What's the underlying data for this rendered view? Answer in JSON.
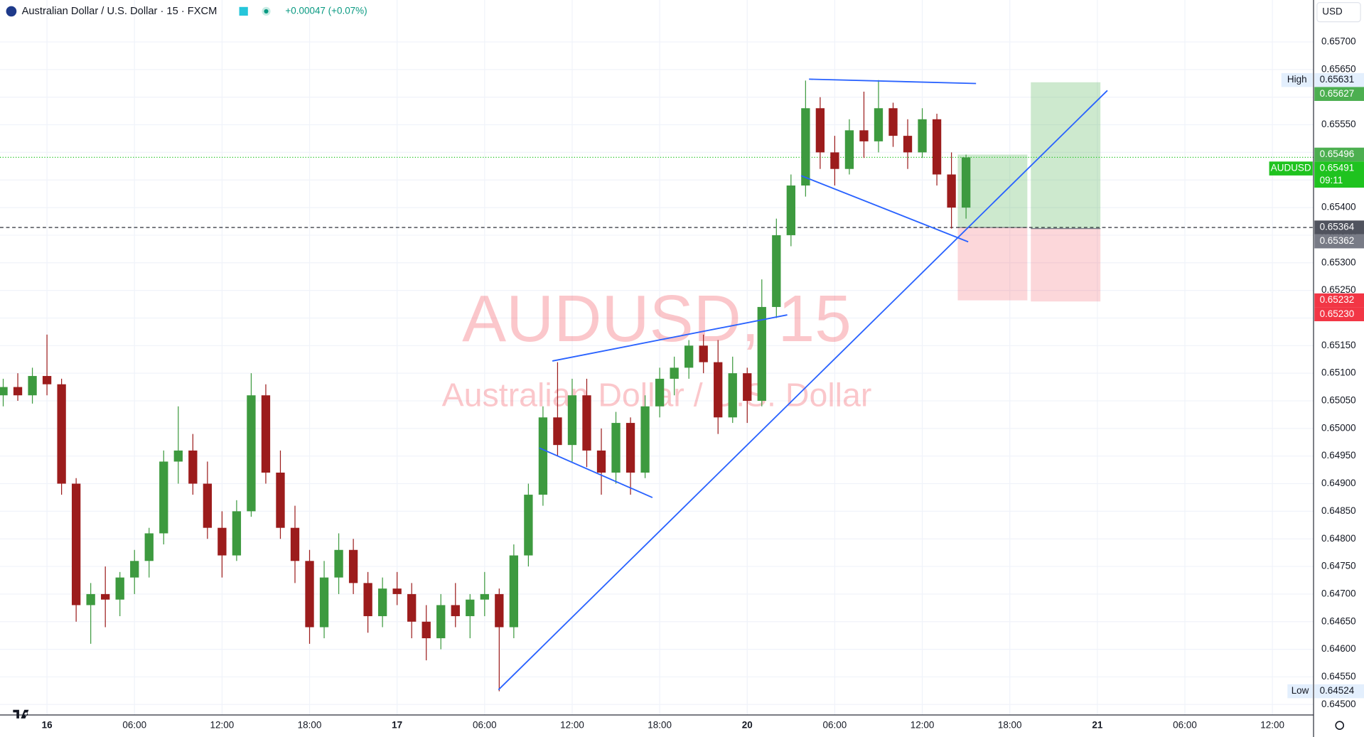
{
  "chart_data": {
    "type": "candlestick",
    "title": "Australian Dollar / U.S. Dollar · 15 · FXCM",
    "change": "+0.00047 (+0.07%)",
    "watermark": "AUDUSD, 15",
    "watermark_subtitle": "Australian Dollar / U.S. Dollar",
    "currency": "USD",
    "up_color": "#3d9a3f",
    "down_color": "#9c1c1c",
    "grid": true,
    "x": [
      -3,
      -2,
      -1,
      0,
      1,
      2,
      3,
      4,
      5,
      6,
      7,
      8,
      9,
      10,
      11,
      12,
      13,
      14,
      15,
      16,
      17,
      18,
      19,
      20,
      21,
      22,
      23,
      24,
      25,
      26,
      27,
      28,
      29,
      30,
      31,
      32,
      33,
      34,
      35,
      36,
      37,
      38,
      39,
      40,
      41,
      42,
      43,
      44,
      45,
      46,
      47,
      48,
      49,
      50,
      51,
      52,
      53,
      54,
      55,
      56,
      57,
      58,
      59,
      60,
      61,
      62,
      63
    ],
    "open": [
      0.6506,
      0.65075,
      0.6506,
      0.65095,
      0.6508,
      0.649,
      0.6468,
      0.647,
      0.6469,
      0.6473,
      0.6476,
      0.6481,
      0.6494,
      0.6496,
      0.649,
      0.6482,
      0.6477,
      0.6485,
      0.6506,
      0.6492,
      0.6482,
      0.6476,
      0.6464,
      0.6473,
      0.6478,
      0.6472,
      0.6466,
      0.6471,
      0.647,
      0.6465,
      0.6462,
      0.6468,
      0.6466,
      0.6469,
      0.647,
      0.6464,
      0.6477,
      0.6488,
      0.6502,
      0.6497,
      0.6506,
      0.6496,
      0.6492,
      0.6501,
      0.6492,
      0.6504,
      0.6509,
      0.6511,
      0.6515,
      0.6512,
      0.6502,
      0.651,
      0.6505,
      0.6522,
      0.6535,
      0.6544,
      0.6558,
      0.655,
      0.6547,
      0.6554,
      0.6552,
      0.6558,
      0.6553,
      0.655,
      0.6556,
      0.6546,
      0.654
    ],
    "high": [
      0.6509,
      0.651,
      0.6511,
      0.6517,
      0.6509,
      0.6491,
      0.6472,
      0.6475,
      0.6474,
      0.6478,
      0.6482,
      0.6496,
      0.6504,
      0.6499,
      0.6494,
      0.6485,
      0.6487,
      0.651,
      0.6508,
      0.6496,
      0.6486,
      0.6478,
      0.6476,
      0.6481,
      0.648,
      0.6474,
      0.6473,
      0.6474,
      0.6472,
      0.6468,
      0.647,
      0.6472,
      0.647,
      0.6474,
      0.6471,
      0.6479,
      0.649,
      0.6504,
      0.6512,
      0.6509,
      0.6509,
      0.65,
      0.6503,
      0.6502,
      0.6506,
      0.6511,
      0.6513,
      0.6516,
      0.6517,
      0.6516,
      0.6513,
      0.6511,
      0.6527,
      0.6538,
      0.6546,
      0.6563,
      0.656,
      0.6553,
      0.6556,
      0.6561,
      0.65631,
      0.6559,
      0.6556,
      0.6558,
      0.6557,
      0.655,
      0.65496
    ],
    "low": [
      0.6504,
      0.6505,
      0.65045,
      0.6506,
      0.6488,
      0.6465,
      0.6461,
      0.6464,
      0.6466,
      0.647,
      0.6473,
      0.6479,
      0.649,
      0.6488,
      0.648,
      0.6473,
      0.6476,
      0.6484,
      0.649,
      0.648,
      0.6472,
      0.6461,
      0.6462,
      0.647,
      0.647,
      0.6463,
      0.6464,
      0.6468,
      0.6462,
      0.6458,
      0.646,
      0.6464,
      0.6462,
      0.6466,
      0.64524,
      0.6462,
      0.6475,
      0.6486,
      0.6495,
      0.6494,
      0.6493,
      0.6488,
      0.649,
      0.6488,
      0.6491,
      0.6502,
      0.6506,
      0.6509,
      0.651,
      0.6499,
      0.6501,
      0.6501,
      0.6504,
      0.652,
      0.6533,
      0.6542,
      0.6547,
      0.6544,
      0.6546,
      0.6549,
      0.655,
      0.6551,
      0.6547,
      0.6549,
      0.6544,
      0.65362,
      0.6538
    ],
    "close": [
      0.65075,
      0.6506,
      0.65095,
      0.6508,
      0.649,
      0.6468,
      0.647,
      0.6469,
      0.6473,
      0.6476,
      0.6481,
      0.6494,
      0.6496,
      0.649,
      0.6482,
      0.6477,
      0.6485,
      0.6506,
      0.6492,
      0.6482,
      0.6476,
      0.6464,
      0.6473,
      0.6478,
      0.6472,
      0.6466,
      0.6471,
      0.647,
      0.6465,
      0.6462,
      0.6468,
      0.6466,
      0.6469,
      0.647,
      0.6464,
      0.6477,
      0.6488,
      0.6502,
      0.6497,
      0.6506,
      0.6496,
      0.6492,
      0.6501,
      0.6492,
      0.6504,
      0.6509,
      0.6511,
      0.6515,
      0.6512,
      0.6502,
      0.651,
      0.6505,
      0.6522,
      0.6535,
      0.6544,
      0.6558,
      0.655,
      0.6547,
      0.6554,
      0.6552,
      0.6558,
      0.6553,
      0.655,
      0.6556,
      0.6546,
      0.654,
      0.65491
    ],
    "xlim": [
      -3.22,
      86.82
    ],
    "xticks": [
      {
        "value": 0,
        "label": "16"
      },
      {
        "value": 6,
        "label": "06:00"
      },
      {
        "value": 12,
        "label": "12:00"
      },
      {
        "value": 18,
        "label": "18:00"
      },
      {
        "value": 24,
        "label": "17"
      },
      {
        "value": 30,
        "label": "06:00"
      },
      {
        "value": 36,
        "label": "12:00"
      },
      {
        "value": 42,
        "label": "18:00"
      },
      {
        "value": 48,
        "label": "20"
      },
      {
        "value": 54,
        "label": "06:00"
      },
      {
        "value": 60,
        "label": "12:00"
      },
      {
        "value": 66,
        "label": "18:00"
      },
      {
        "value": 72,
        "label": "21"
      },
      {
        "value": 78,
        "label": "06:00"
      },
      {
        "value": 84,
        "label": "12:00"
      }
    ],
    "ylim": [
      0.64481,
      0.65776
    ],
    "yticks": [
      {
        "value": 0.657,
        "label": "0.65700"
      },
      {
        "value": 0.6565,
        "label": "0.65650"
      },
      {
        "value": 0.656,
        "label": "0.65600"
      },
      {
        "value": 0.6555,
        "label": "0.65550"
      },
      {
        "value": 0.655,
        "label": "0.65500"
      },
      {
        "value": 0.6545,
        "label": "0.65450"
      },
      {
        "value": 0.654,
        "label": "0.65400"
      },
      {
        "value": 0.6535,
        "label": "0.65350"
      },
      {
        "value": 0.653,
        "label": "0.65300"
      },
      {
        "value": 0.6525,
        "label": "0.65250"
      },
      {
        "value": 0.652,
        "label": "0.65200"
      },
      {
        "value": 0.6515,
        "label": "0.65150"
      },
      {
        "value": 0.651,
        "label": "0.65100"
      },
      {
        "value": 0.6505,
        "label": "0.65050"
      },
      {
        "value": 0.65,
        "label": "0.65000"
      },
      {
        "value": 0.6495,
        "label": "0.64950"
      },
      {
        "value": 0.649,
        "label": "0.64900"
      },
      {
        "value": 0.6485,
        "label": "0.64850"
      },
      {
        "value": 0.648,
        "label": "0.64800"
      },
      {
        "value": 0.6475,
        "label": "0.64750"
      },
      {
        "value": 0.647,
        "label": "0.64700"
      },
      {
        "value": 0.6465,
        "label": "0.64650"
      },
      {
        "value": 0.646,
        "label": "0.64600"
      },
      {
        "value": 0.6455,
        "label": "0.64550"
      },
      {
        "value": 0.645,
        "label": "0.64500"
      }
    ],
    "price_labels": [
      {
        "value": 0.65631,
        "label": "0.65631",
        "caption": "High",
        "color": "#e3effd",
        "text_color": "#131722"
      },
      {
        "value": 0.65627,
        "label": "0.65627",
        "color": "#4caf50",
        "text_color": "#ffffff"
      },
      {
        "value": 0.65496,
        "label": "0.65496",
        "color": "#4caf50",
        "text_color": "#ffffff"
      },
      {
        "value": 0.65491,
        "label": "0.65491",
        "caption": "AUDUSD",
        "countdown": "09:11",
        "color": "#1fc31f",
        "text_color": "#ffffff"
      },
      {
        "value": 0.65364,
        "label": "0.65364",
        "color": "#50535e",
        "text_color": "#ffffff"
      },
      {
        "value": 0.65362,
        "label": "0.65362",
        "color": "#787b86",
        "text_color": "#ffffff"
      },
      {
        "value": 0.65232,
        "label": "0.65232",
        "color": "#f23645",
        "text_color": "#ffffff"
      },
      {
        "value": 0.6523,
        "label": "0.65230",
        "color": "#f23645",
        "text_color": "#ffffff"
      },
      {
        "value": 0.64524,
        "label": "0.64524",
        "caption": "Low",
        "color": "#e3effd",
        "text_color": "#131722"
      }
    ]
  }
}
